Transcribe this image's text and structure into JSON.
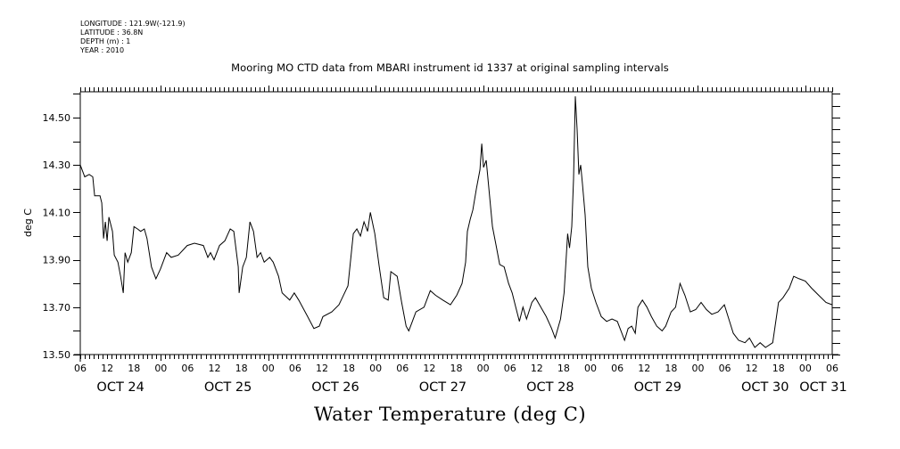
{
  "chart_data": {
    "type": "line",
    "title": "Mooring MO CTD data from MBARI instrument id 1337 at original sampling intervals",
    "header_info": [
      "LONGITUDE : 121.9W(-121.9)",
      "LATITUDE : 36.8N",
      "DEPTH (m) : 1",
      "YEAR : 2010"
    ],
    "xlabel": "Water Temperature (deg C)",
    "ylabel": "deg C",
    "ylim": [
      13.5,
      14.61
    ],
    "yticks": [
      "13.50",
      "13.70",
      "13.90",
      "14.10",
      "14.30",
      "14.50"
    ],
    "ytick_values": [
      13.5,
      13.7,
      13.9,
      14.1,
      14.3,
      14.5
    ],
    "x_unit": "hours since OCT 24 06:00",
    "xlim": [
      0,
      168
    ],
    "xtick_hours": [
      "06",
      "12",
      "18",
      "00",
      "06",
      "12",
      "18",
      "00",
      "06",
      "12",
      "18",
      "00",
      "06",
      "12",
      "18",
      "00",
      "06",
      "12",
      "18",
      "00",
      "06",
      "12",
      "18",
      "00",
      "06",
      "12",
      "18",
      "00",
      "06"
    ],
    "day_labels": [
      {
        "label": "OCT 24",
        "center_hour": 9
      },
      {
        "label": "OCT 25",
        "center_hour": 33
      },
      {
        "label": "OCT 26",
        "center_hour": 57
      },
      {
        "label": "OCT 27",
        "center_hour": 81
      },
      {
        "label": "OCT 28",
        "center_hour": 105
      },
      {
        "label": "OCT 29",
        "center_hour": 129
      },
      {
        "label": "OCT 30",
        "center_hour": 153
      },
      {
        "label": "OCT 31",
        "center_hour": 166
      }
    ],
    "grid": false,
    "legend": "none",
    "series": [
      {
        "name": "Water Temperature",
        "color": "#000000",
        "points": [
          [
            0.0,
            14.3
          ],
          [
            1.0,
            14.25
          ],
          [
            2.0,
            14.26
          ],
          [
            2.8,
            14.25
          ],
          [
            3.2,
            14.17
          ],
          [
            4.4,
            14.17
          ],
          [
            4.8,
            14.14
          ],
          [
            5.2,
            13.99
          ],
          [
            5.6,
            14.06
          ],
          [
            6.0,
            13.98
          ],
          [
            6.4,
            14.08
          ],
          [
            7.2,
            14.02
          ],
          [
            7.6,
            13.92
          ],
          [
            8.4,
            13.89
          ],
          [
            9.0,
            13.83
          ],
          [
            9.6,
            13.76
          ],
          [
            10.0,
            13.93
          ],
          [
            10.6,
            13.89
          ],
          [
            11.4,
            13.93
          ],
          [
            12.0,
            14.04
          ],
          [
            12.8,
            14.03
          ],
          [
            13.5,
            14.02
          ],
          [
            14.3,
            14.03
          ],
          [
            14.9,
            13.99
          ],
          [
            15.9,
            13.87
          ],
          [
            16.9,
            13.82
          ],
          [
            17.9,
            13.86
          ],
          [
            19.3,
            13.93
          ],
          [
            20.3,
            13.91
          ],
          [
            21.9,
            13.92
          ],
          [
            23.9,
            13.96
          ],
          [
            25.5,
            13.97
          ],
          [
            27.5,
            13.96
          ],
          [
            28.5,
            13.91
          ],
          [
            29.1,
            13.93
          ],
          [
            29.9,
            13.9
          ],
          [
            31.1,
            13.96
          ],
          [
            32.3,
            13.98
          ],
          [
            33.5,
            14.03
          ],
          [
            34.3,
            14.02
          ],
          [
            35.3,
            13.87
          ],
          [
            35.5,
            13.76
          ],
          [
            36.3,
            13.87
          ],
          [
            37.1,
            13.91
          ],
          [
            37.9,
            14.06
          ],
          [
            38.7,
            14.02
          ],
          [
            39.5,
            13.91
          ],
          [
            40.3,
            13.93
          ],
          [
            41.1,
            13.89
          ],
          [
            42.3,
            13.91
          ],
          [
            43.1,
            13.89
          ],
          [
            44.3,
            13.83
          ],
          [
            45.1,
            13.76
          ],
          [
            46.8,
            13.73
          ],
          [
            47.8,
            13.76
          ],
          [
            48.8,
            13.73
          ],
          [
            50.8,
            13.66
          ],
          [
            52.2,
            13.61
          ],
          [
            53.4,
            13.62
          ],
          [
            54.2,
            13.66
          ],
          [
            56.2,
            13.68
          ],
          [
            57.8,
            13.71
          ],
          [
            59.8,
            13.79
          ],
          [
            61.0,
            14.01
          ],
          [
            61.8,
            14.03
          ],
          [
            62.6,
            14.0
          ],
          [
            63.4,
            14.06
          ],
          [
            64.2,
            14.02
          ],
          [
            64.8,
            14.1
          ],
          [
            65.8,
            14.01
          ],
          [
            66.8,
            13.87
          ],
          [
            67.8,
            13.74
          ],
          [
            68.8,
            13.73
          ],
          [
            69.4,
            13.85
          ],
          [
            70.8,
            13.83
          ],
          [
            71.8,
            13.72
          ],
          [
            72.8,
            13.62
          ],
          [
            73.4,
            13.6
          ],
          [
            74.2,
            13.64
          ],
          [
            75.0,
            13.68
          ],
          [
            76.8,
            13.7
          ],
          [
            78.2,
            13.77
          ],
          [
            79.4,
            13.75
          ],
          [
            81.0,
            13.73
          ],
          [
            82.7,
            13.71
          ],
          [
            84.1,
            13.75
          ],
          [
            85.3,
            13.8
          ],
          [
            86.1,
            13.89
          ],
          [
            86.5,
            14.02
          ],
          [
            87.1,
            14.07
          ],
          [
            87.7,
            14.11
          ],
          [
            88.5,
            14.2
          ],
          [
            89.3,
            14.28
          ],
          [
            89.7,
            14.39
          ],
          [
            90.1,
            14.29
          ],
          [
            90.7,
            14.32
          ],
          [
            91.3,
            14.2
          ],
          [
            92.1,
            14.04
          ],
          [
            92.9,
            13.96
          ],
          [
            93.7,
            13.88
          ],
          [
            94.7,
            13.87
          ],
          [
            95.7,
            13.8
          ],
          [
            96.5,
            13.76
          ],
          [
            97.3,
            13.7
          ],
          [
            98.1,
            13.64
          ],
          [
            98.9,
            13.7
          ],
          [
            99.7,
            13.65
          ],
          [
            100.9,
            13.72
          ],
          [
            101.7,
            13.74
          ],
          [
            102.9,
            13.7
          ],
          [
            104.1,
            13.66
          ],
          [
            105.3,
            13.61
          ],
          [
            106.1,
            13.57
          ],
          [
            107.3,
            13.65
          ],
          [
            108.1,
            13.76
          ],
          [
            108.9,
            14.01
          ],
          [
            109.3,
            13.95
          ],
          [
            109.8,
            14.04
          ],
          [
            110.2,
            14.24
          ],
          [
            110.6,
            14.59
          ],
          [
            111.0,
            14.45
          ],
          [
            111.4,
            14.26
          ],
          [
            111.8,
            14.3
          ],
          [
            112.2,
            14.22
          ],
          [
            112.8,
            14.09
          ],
          [
            113.4,
            13.87
          ],
          [
            114.2,
            13.78
          ],
          [
            115.2,
            13.72
          ],
          [
            116.4,
            13.66
          ],
          [
            117.6,
            13.64
          ],
          [
            118.8,
            13.65
          ],
          [
            120.0,
            13.64
          ],
          [
            120.8,
            13.6
          ],
          [
            121.6,
            13.56
          ],
          [
            122.4,
            13.61
          ],
          [
            123.2,
            13.62
          ],
          [
            124.0,
            13.59
          ],
          [
            124.6,
            13.7
          ],
          [
            125.6,
            13.73
          ],
          [
            126.6,
            13.7
          ],
          [
            127.6,
            13.66
          ],
          [
            128.8,
            13.62
          ],
          [
            130.0,
            13.6
          ],
          [
            130.8,
            13.62
          ],
          [
            132.0,
            13.68
          ],
          [
            133.0,
            13.7
          ],
          [
            134.0,
            13.8
          ],
          [
            135.1,
            13.75
          ],
          [
            136.3,
            13.68
          ],
          [
            137.5,
            13.69
          ],
          [
            138.7,
            13.72
          ],
          [
            139.9,
            13.69
          ],
          [
            141.1,
            13.67
          ],
          [
            142.5,
            13.68
          ],
          [
            143.9,
            13.71
          ],
          [
            144.9,
            13.65
          ],
          [
            145.9,
            13.59
          ],
          [
            147.1,
            13.56
          ],
          [
            148.5,
            13.55
          ],
          [
            149.5,
            13.57
          ],
          [
            150.7,
            13.53
          ],
          [
            151.9,
            13.55
          ],
          [
            153.1,
            13.53
          ],
          [
            154.7,
            13.55
          ],
          [
            156.0,
            13.72
          ],
          [
            157.0,
            13.74
          ],
          [
            158.4,
            13.78
          ],
          [
            159.4,
            13.83
          ],
          [
            160.6,
            13.82
          ],
          [
            162.0,
            13.81
          ],
          [
            163.4,
            13.78
          ],
          [
            165.0,
            13.75
          ],
          [
            166.6,
            13.72
          ],
          [
            168.0,
            13.71
          ]
        ]
      }
    ]
  }
}
